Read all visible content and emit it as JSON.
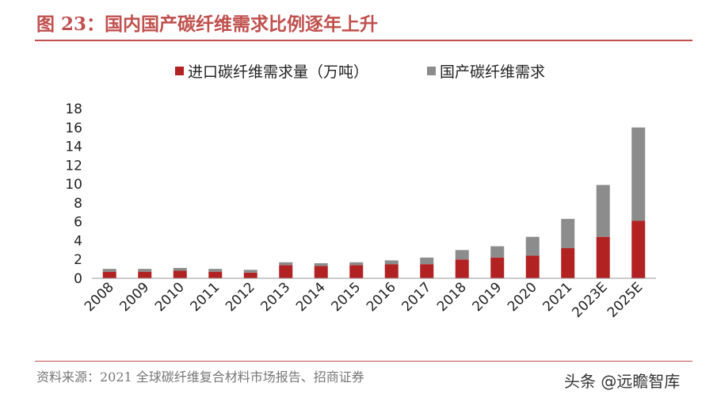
{
  "title": "图 23：国内国产碳纤维需求比例逐年上升",
  "source": "资料来源：2021 全球碳纤维复合材料市场报告、招商证券",
  "watermark": "头条 @远瞻智库",
  "colors": {
    "accent": "#c0504d",
    "imported": "#b22222",
    "domestic": "#8c8c8c"
  },
  "chart_data": {
    "type": "bar",
    "stacked": true,
    "categories": [
      "2008",
      "2009",
      "2010",
      "2011",
      "2012",
      "2013",
      "2014",
      "2015",
      "2016",
      "2017",
      "2018",
      "2019",
      "2020",
      "2021",
      "2023E",
      "2025E"
    ],
    "series": [
      {
        "name": "进口碳纤维需求量（万吨）",
        "values": [
          0.7,
          0.7,
          0.8,
          0.7,
          0.6,
          1.4,
          1.3,
          1.4,
          1.5,
          1.5,
          2.0,
          2.2,
          2.4,
          3.2,
          4.4,
          6.1
        ]
      },
      {
        "name": "国产碳纤维需求",
        "values": [
          0.3,
          0.3,
          0.3,
          0.3,
          0.3,
          0.3,
          0.3,
          0.3,
          0.4,
          0.7,
          1.0,
          1.2,
          2.0,
          3.1,
          5.5,
          9.9
        ]
      }
    ],
    "ylim": [
      0,
      18
    ],
    "yticks": [
      0,
      2,
      4,
      6,
      8,
      10,
      12,
      14,
      16,
      18
    ],
    "grid": false,
    "legend": "top"
  }
}
